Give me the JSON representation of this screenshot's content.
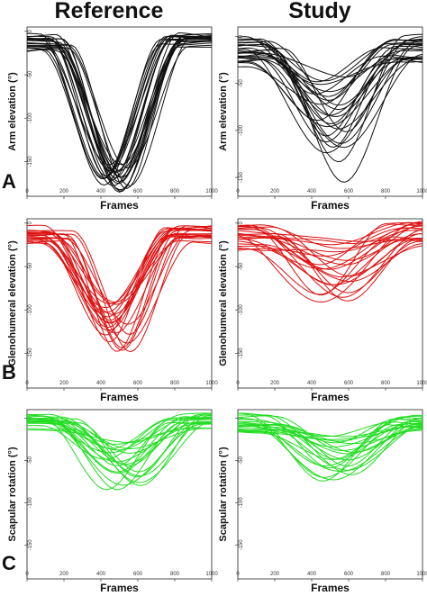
{
  "figure": {
    "columns": [
      "Reference",
      "Study"
    ],
    "rows": [
      "A",
      "B",
      "C"
    ]
  },
  "colors": {
    "A": "#111111",
    "B": "#dd1111",
    "C": "#22dd22"
  },
  "chart_data": [
    {
      "type": "line",
      "column": "Reference",
      "row": "A",
      "ylabel": "Arm elevation (°)",
      "xlabel": "Frames",
      "xlim": [
        0,
        1000
      ],
      "ylim": [
        -190,
        5
      ],
      "xticks": [
        0,
        200,
        400,
        600,
        800,
        1000
      ],
      "yticks": [
        0,
        -50,
        -100,
        -150
      ],
      "curves": {
        "n": 24,
        "min_low": -155,
        "min_high": -185,
        "center_low": 410,
        "center_high": 560,
        "width_low": 185,
        "width_high": 235,
        "start_low": -4,
        "start_high": -22,
        "end_low": -4,
        "end_high": -18
      }
    },
    {
      "type": "line",
      "column": "Study",
      "row": "A",
      "ylabel": "Arm elevation (°)",
      "xlabel": "Frames",
      "xlim": [
        0,
        1000
      ],
      "ylim": [
        -170,
        10
      ],
      "xticks": [
        0,
        200,
        400,
        600,
        800,
        1000
      ],
      "yticks": [
        0,
        -50,
        -100,
        -150
      ],
      "curves": {
        "n": 24,
        "min_low": -42,
        "min_high": -125,
        "center_low": 420,
        "center_high": 600,
        "width_low": 200,
        "width_high": 280,
        "start_low": -2,
        "start_high": -32,
        "end_low": 0,
        "end_high": -28,
        "extra_mins": [
          -133,
          -150
        ]
      }
    },
    {
      "type": "line",
      "column": "Reference",
      "row": "B",
      "ylabel": "Glenohumeral elevation (°)",
      "xlabel": "Frames",
      "xlim": [
        0,
        1000
      ],
      "ylim": [
        -190,
        5
      ],
      "xticks": [
        0,
        200,
        400,
        600,
        800,
        1000
      ],
      "yticks": [
        0,
        -50,
        -100,
        -150
      ],
      "curves": {
        "n": 22,
        "min_low": -90,
        "min_high": -150,
        "center_low": 410,
        "center_high": 560,
        "width_low": 180,
        "width_high": 240,
        "start_low": -5,
        "start_high": -25,
        "end_low": -2,
        "end_high": -22
      }
    },
    {
      "type": "line",
      "column": "Study",
      "row": "B",
      "ylabel": "Glenohumeral elevation (°)",
      "xlabel": "Frames",
      "xlim": [
        0,
        1000
      ],
      "ylim": [
        -190,
        5
      ],
      "xticks": [
        0,
        200,
        400,
        600,
        800,
        1000
      ],
      "yticks": [
        0,
        -50,
        -100,
        -150
      ],
      "curves": {
        "n": 22,
        "min_low": -20,
        "min_high": -95,
        "center_low": 420,
        "center_high": 620,
        "width_low": 220,
        "width_high": 320,
        "start_low": -3,
        "start_high": -30,
        "end_low": 0,
        "end_high": -26
      }
    },
    {
      "type": "line",
      "column": "Reference",
      "row": "C",
      "ylabel": "Scapular rotation (°)",
      "xlabel": "Frames",
      "xlim": [
        0,
        1000
      ],
      "ylim": [
        -190,
        10
      ],
      "xticks": [
        0,
        200,
        400,
        600,
        800,
        1000
      ],
      "yticks": [
        0,
        -50,
        -100,
        -150
      ],
      "curves": {
        "n": 22,
        "min_low": -28,
        "min_high": -85,
        "center_low": 420,
        "center_high": 620,
        "width_low": 190,
        "width_high": 260,
        "start_low": 5,
        "start_high": -15,
        "end_low": 5,
        "end_high": -12
      }
    },
    {
      "type": "line",
      "column": "Study",
      "row": "C",
      "ylabel": "Scapular rotation (°)",
      "xlabel": "Frames",
      "xlim": [
        0,
        1000
      ],
      "ylim": [
        -190,
        10
      ],
      "xticks": [
        0,
        200,
        400,
        600,
        800,
        1000
      ],
      "yticks": [
        0,
        -50,
        -100,
        -150
      ],
      "curves": {
        "n": 22,
        "min_low": -20,
        "min_high": -75,
        "center_low": 420,
        "center_high": 620,
        "width_low": 210,
        "width_high": 290,
        "start_low": 5,
        "start_high": -18,
        "end_low": 3,
        "end_high": -15
      }
    }
  ]
}
